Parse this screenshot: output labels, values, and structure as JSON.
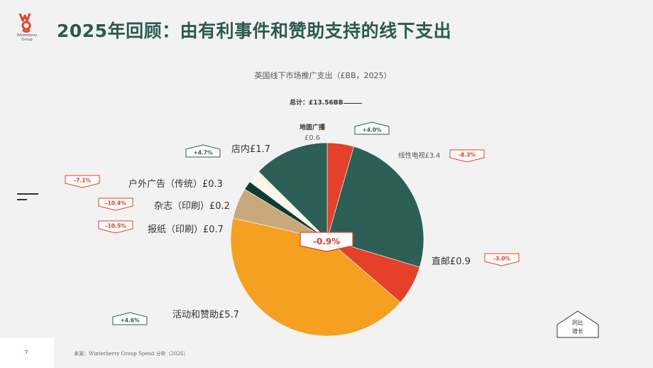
{
  "header": {
    "logo_text": "Winterberry Group",
    "title": "2025年回顾：由有利事件和赞助支持的线下支出"
  },
  "chart_data": {
    "type": "pie",
    "title": "英国线下市场推广支出（£BB，2025）",
    "total_label": "总计：£13.56BB",
    "center_change": "-0.9%",
    "slices": [
      {
        "name": "地面广播",
        "label": "£0.6",
        "value": 0.6,
        "change": "+4.0%",
        "color": "#e5402a"
      },
      {
        "name": "线性电视",
        "label": "线性电视£3.4",
        "value": 3.4,
        "change": "-8.3%",
        "color": "#2c5f55"
      },
      {
        "name": "直邮",
        "label": "直邮£0.9",
        "value": 0.9,
        "change": "-3.0%",
        "color": "#e5402a"
      },
      {
        "name": "活动和赞助",
        "label": "活动和赞助£5.7",
        "value": 5.7,
        "change": "+4.6%",
        "color": "#f5a020"
      },
      {
        "name": "报纸（印刷）",
        "label": "报纸（印刷）£0.7",
        "value": 0.7,
        "change": "-10.5%",
        "color": "#c9a87c"
      },
      {
        "name": "杂志（印刷）",
        "label": "杂志（印刷）£0.2",
        "value": 0.2,
        "change": "-10.4%",
        "color": "#0e3b33"
      },
      {
        "name": "户外广告（传统）",
        "label": "户外广告（传统）£0.3",
        "value": 0.3,
        "change": "-7.1%",
        "color": "#fbf6ea"
      },
      {
        "name": "店内",
        "label": "店内£1.7",
        "value": 1.7,
        "change": "+4.7%",
        "color": "#2c5f55"
      }
    ],
    "legend_label": "同比\n增长",
    "colors": {
      "positive": "#2c5f55",
      "negative": "#e5402a"
    }
  },
  "footer": {
    "page": "7",
    "source": "来源：Winterberry Group Spend 分析（2026）"
  }
}
